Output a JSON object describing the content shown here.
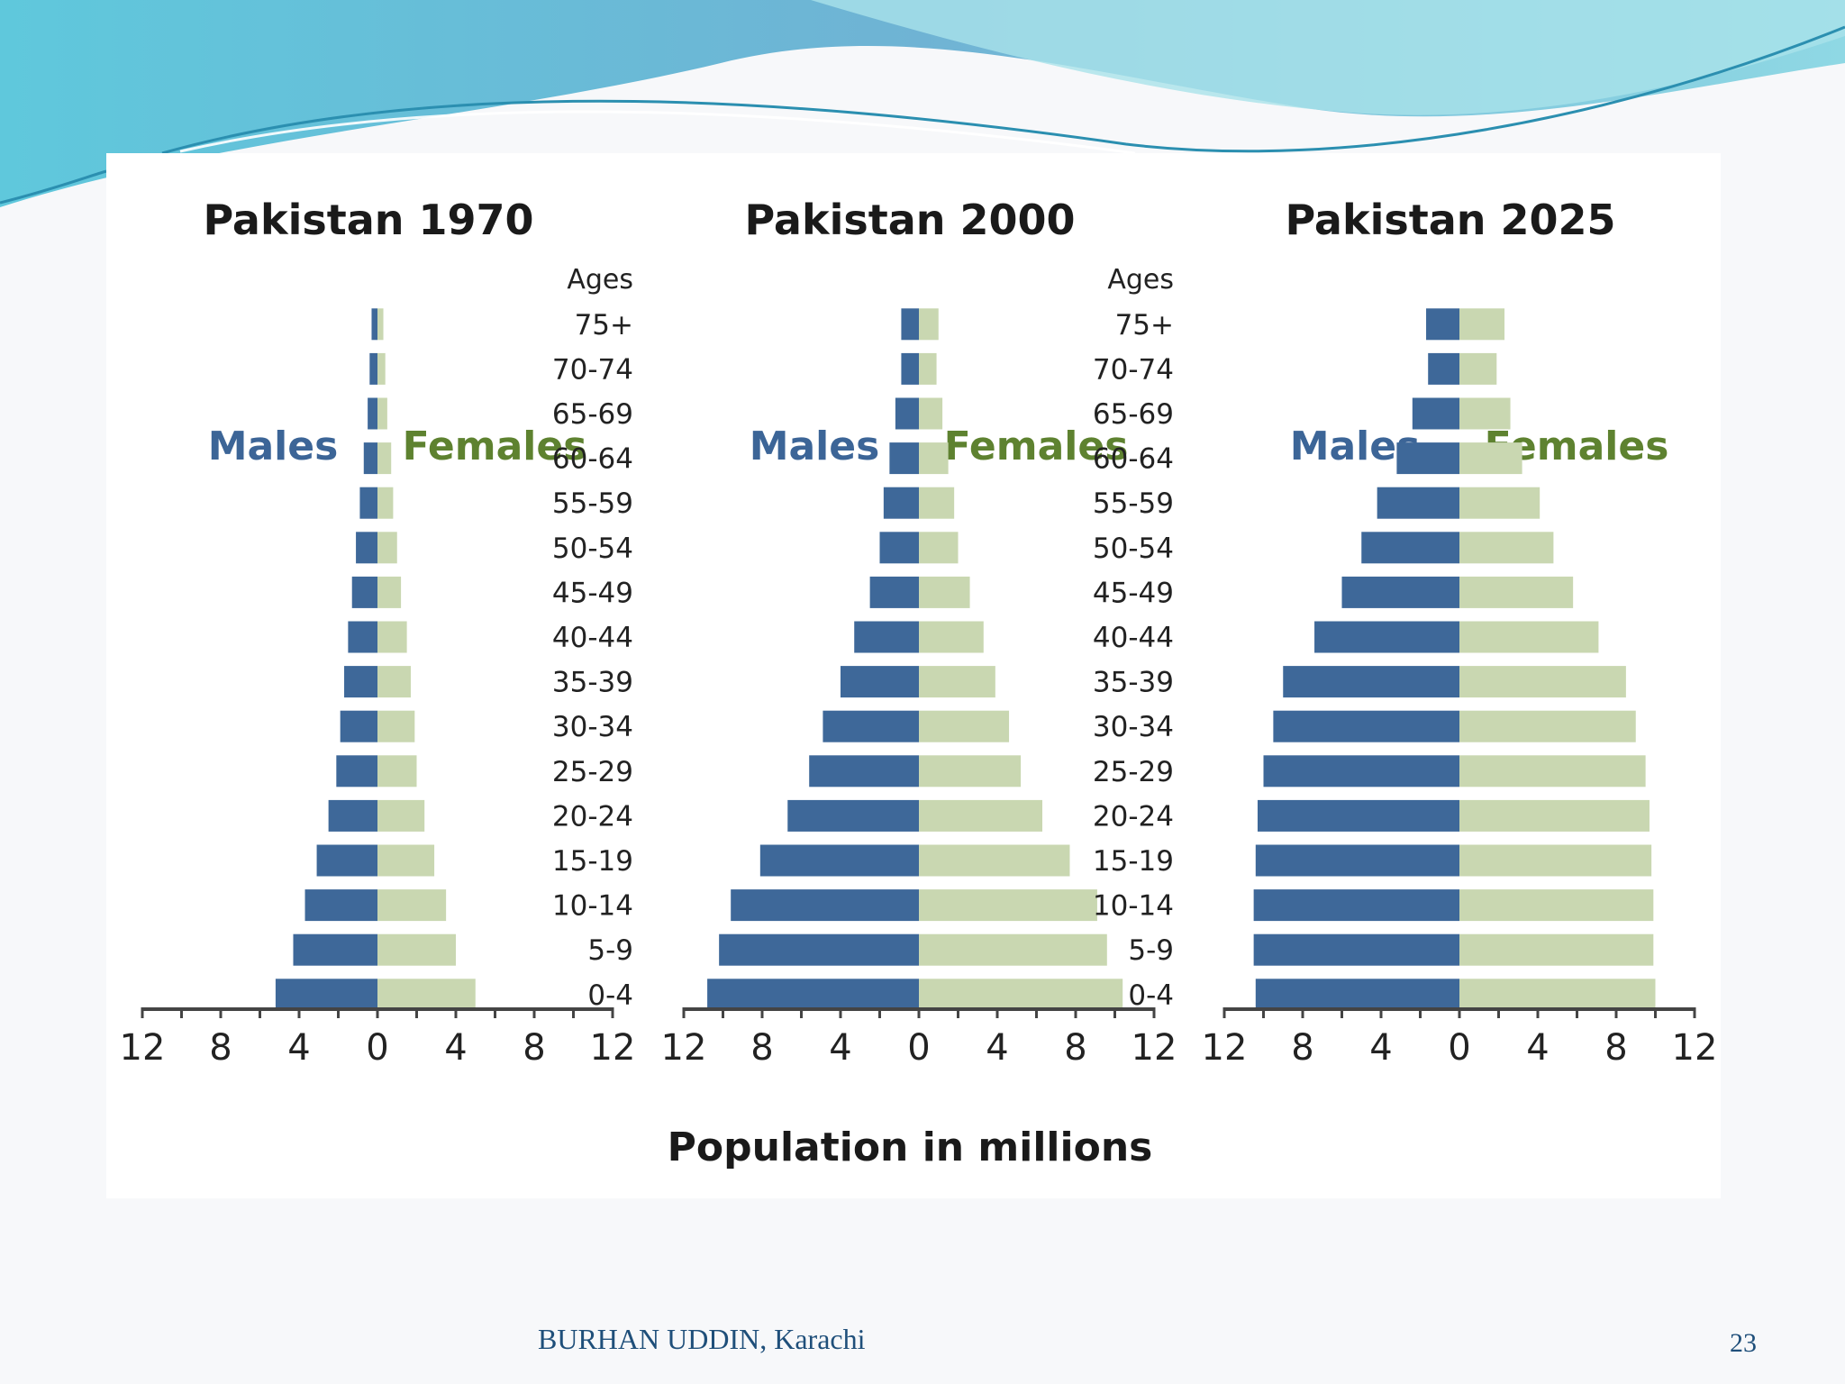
{
  "slide": {
    "author": "BURHAN UDDIN, Karachi",
    "page_number": "23"
  },
  "colors": {
    "males": "#3e6899",
    "females": "#c9d7b1",
    "males_label": "#3c6597",
    "females_label": "#5e8230",
    "axis": "#444444"
  },
  "chart_data": [
    {
      "type": "bar",
      "orientation": "horizontal-population-pyramid",
      "title": "Pakistan 1970",
      "xlabel": "Population in millions",
      "age_header": "Ages",
      "categories": [
        "75+",
        "70-74",
        "65-69",
        "60-64",
        "55-59",
        "50-54",
        "45-49",
        "40-44",
        "35-39",
        "30-34",
        "25-29",
        "20-24",
        "15-19",
        "10-14",
        "5-9",
        "0-4"
      ],
      "xlim": [
        -12,
        12
      ],
      "xticks": [
        "12",
        "8",
        "4",
        "0",
        "4",
        "8",
        "12"
      ],
      "series": [
        {
          "name": "Males",
          "values": [
            0.3,
            0.4,
            0.5,
            0.7,
            0.9,
            1.1,
            1.3,
            1.5,
            1.7,
            1.9,
            2.1,
            2.5,
            3.1,
            3.7,
            4.3,
            5.2
          ]
        },
        {
          "name": "Females",
          "values": [
            0.3,
            0.4,
            0.5,
            0.7,
            0.8,
            1.0,
            1.2,
            1.5,
            1.7,
            1.9,
            2.0,
            2.4,
            2.9,
            3.5,
            4.0,
            5.0
          ]
        }
      ]
    },
    {
      "type": "bar",
      "orientation": "horizontal-population-pyramid",
      "title": "Pakistan 2000",
      "xlabel": "Population in millions",
      "age_header": "Ages",
      "categories": [
        "75+",
        "70-74",
        "65-69",
        "60-64",
        "55-59",
        "50-54",
        "45-49",
        "40-44",
        "35-39",
        "30-34",
        "25-29",
        "20-24",
        "15-19",
        "10-14",
        "5-9",
        "0-4"
      ],
      "xlim": [
        -12,
        12
      ],
      "xticks": [
        "12",
        "8",
        "4",
        "0",
        "4",
        "8",
        "12"
      ],
      "series": [
        {
          "name": "Males",
          "values": [
            0.9,
            0.9,
            1.2,
            1.5,
            1.8,
            2.0,
            2.5,
            3.3,
            4.0,
            4.9,
            5.6,
            6.7,
            8.1,
            9.6,
            10.2,
            10.8
          ]
        },
        {
          "name": "Females",
          "values": [
            1.0,
            0.9,
            1.2,
            1.5,
            1.8,
            2.0,
            2.6,
            3.3,
            3.9,
            4.6,
            5.2,
            6.3,
            7.7,
            9.1,
            9.6,
            10.4
          ]
        }
      ]
    },
    {
      "type": "bar",
      "orientation": "horizontal-population-pyramid",
      "title": "Pakistan 2025",
      "xlabel": "Population in millions",
      "age_header": "Ages",
      "categories": [
        "75+",
        "70-74",
        "65-69",
        "60-64",
        "55-59",
        "50-54",
        "45-49",
        "40-44",
        "35-39",
        "30-34",
        "25-29",
        "20-24",
        "15-19",
        "10-14",
        "5-9",
        "0-4"
      ],
      "xlim": [
        -12,
        12
      ],
      "xticks": [
        "12",
        "8",
        "4",
        "0",
        "4",
        "8",
        "12"
      ],
      "series": [
        {
          "name": "Males",
          "values": [
            1.7,
            1.6,
            2.4,
            3.2,
            4.2,
            5.0,
            6.0,
            7.4,
            9.0,
            9.5,
            10.0,
            10.3,
            10.4,
            10.5,
            10.5,
            10.4
          ]
        },
        {
          "name": "Females",
          "values": [
            2.3,
            1.9,
            2.6,
            3.2,
            4.1,
            4.8,
            5.8,
            7.1,
            8.5,
            9.0,
            9.5,
            9.7,
            9.8,
            9.9,
            9.9,
            10.0
          ]
        }
      ]
    }
  ],
  "labels": {
    "males": "Males",
    "females": "Females"
  }
}
